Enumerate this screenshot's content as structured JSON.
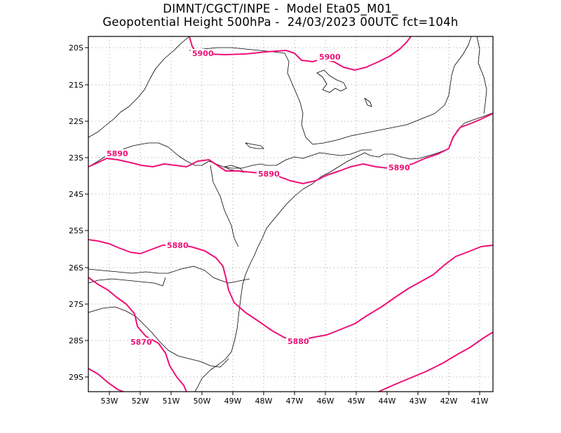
{
  "title": {
    "line1": "DIMNT/CGCT/INPE -  Model Eta05_M01_",
    "line2": "Geopotential Height 500hPa -  24/03/2023 00UTC fct=104h"
  },
  "axes": {
    "x_labels": [
      "53W",
      "52W",
      "51W",
      "50W",
      "49W",
      "48W",
      "47W",
      "46W",
      "45W",
      "44W",
      "43W",
      "42W",
      "41W"
    ],
    "y_labels": [
      "20S",
      "21S",
      "22S",
      "23S",
      "24S",
      "25S",
      "26S",
      "27S",
      "28S",
      "29S"
    ]
  },
  "map": {
    "region": "Southern/Southeastern Brazil",
    "lon_range": [
      -53.6,
      -40.55
    ],
    "lat_range": [
      -29.4,
      -19.65
    ],
    "gridlines": "dotted",
    "contour_color": "#ee1177",
    "border_color": "#000000",
    "contour_labels": [
      "5900",
      "5900",
      "5890",
      "5890",
      "5890",
      "5880",
      "5880",
      "5870"
    ]
  }
}
